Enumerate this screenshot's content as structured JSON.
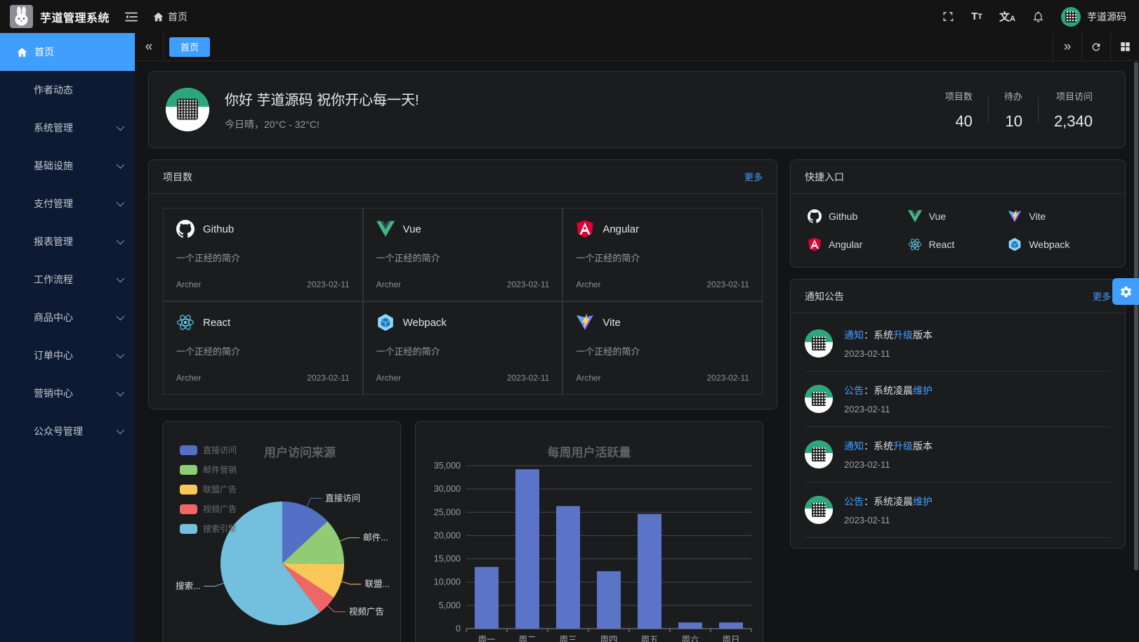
{
  "colors": {
    "accent": "#409eff",
    "sidebar_bg": "#0c1b33",
    "card_bg": "#1b1c1e",
    "qr_green": "#2aa87c"
  },
  "topbar": {
    "title": "芋道管理系统",
    "breadcrumb_home": "首页",
    "username": "芋道源码",
    "icons": [
      "fold-icon",
      "home-icon",
      "fullscreen-icon",
      "font-size-icon",
      "locale-icon",
      "bell-icon",
      "avatar"
    ]
  },
  "tabbar": {
    "active_tab": "首页",
    "icons": [
      "collapse-left-icon",
      "expand-right-icon",
      "refresh-icon",
      "layout-grid-icon"
    ]
  },
  "sidebar": {
    "items": [
      {
        "label": "首页",
        "active": true,
        "icon": "home-icon",
        "children": false
      },
      {
        "label": "作者动态",
        "children": false
      },
      {
        "label": "系统管理",
        "children": true
      },
      {
        "label": "基础设施",
        "children": true
      },
      {
        "label": "支付管理",
        "children": true
      },
      {
        "label": "报表管理",
        "children": true
      },
      {
        "label": "工作流程",
        "children": true
      },
      {
        "label": "商品中心",
        "children": true
      },
      {
        "label": "订单中心",
        "children": true
      },
      {
        "label": "营销中心",
        "children": true
      },
      {
        "label": "公众号管理",
        "children": true
      }
    ]
  },
  "hero": {
    "greeting": "你好 芋道源码 祝你开心每一天!",
    "weather": "今日晴，20°C - 32°C!",
    "stats": [
      {
        "label": "项目数",
        "value": "40"
      },
      {
        "label": "待办",
        "value": "10"
      },
      {
        "label": "项目访问",
        "value": "2,340"
      }
    ]
  },
  "projects": {
    "title": "项目数",
    "more": "更多",
    "items": [
      {
        "name": "Github",
        "icon": "github-icon",
        "desc": "一个正经的简介",
        "author": "Archer",
        "date": "2023-02-11"
      },
      {
        "name": "Vue",
        "icon": "vue-icon",
        "desc": "一个正经的简介",
        "author": "Archer",
        "date": "2023-02-11"
      },
      {
        "name": "Angular",
        "icon": "angular-icon",
        "desc": "一个正经的简介",
        "author": "Archer",
        "date": "2023-02-11"
      },
      {
        "name": "React",
        "icon": "react-icon",
        "desc": "一个正经的简介",
        "author": "Archer",
        "date": "2023-02-11"
      },
      {
        "name": "Webpack",
        "icon": "webpack-icon",
        "desc": "一个正经的简介",
        "author": "Archer",
        "date": "2023-02-11"
      },
      {
        "name": "Vite",
        "icon": "vite-icon",
        "desc": "一个正经的简介",
        "author": "Archer",
        "date": "2023-02-11"
      }
    ]
  },
  "shortcuts": {
    "title": "快捷入口",
    "items": [
      {
        "name": "Github",
        "icon": "github-icon"
      },
      {
        "name": "Vue",
        "icon": "vue-icon"
      },
      {
        "name": "Vite",
        "icon": "vite-icon"
      },
      {
        "name": "Angular",
        "icon": "angular-icon"
      },
      {
        "name": "React",
        "icon": "react-icon"
      },
      {
        "name": "Webpack",
        "icon": "webpack-icon"
      }
    ]
  },
  "notices": {
    "title": "通知公告",
    "more": "更多",
    "items": [
      {
        "segments": [
          {
            "t": "通知",
            "hl": true
          },
          {
            "t": "：系统",
            "hl": false
          },
          {
            "t": "升级",
            "hl": true
          },
          {
            "t": "版本",
            "hl": false
          }
        ],
        "date": "2023-02-11"
      },
      {
        "segments": [
          {
            "t": "公告",
            "hl": true
          },
          {
            "t": "：系统凌晨",
            "hl": false
          },
          {
            "t": "维护",
            "hl": true
          }
        ],
        "date": "2023-02-11"
      },
      {
        "segments": [
          {
            "t": "通知",
            "hl": true
          },
          {
            "t": "：系统",
            "hl": false
          },
          {
            "t": "升级",
            "hl": true
          },
          {
            "t": "版本",
            "hl": false
          }
        ],
        "date": "2023-02-11"
      },
      {
        "segments": [
          {
            "t": "公告",
            "hl": true
          },
          {
            "t": "：系统凌晨",
            "hl": false
          },
          {
            "t": "维护",
            "hl": true
          }
        ],
        "date": "2023-02-11"
      }
    ]
  },
  "chart_data": [
    {
      "type": "pie",
      "title": "用户访问来源",
      "legend_position": "top-left-vertical",
      "series": [
        {
          "name": "直接访问",
          "value": 335,
          "color": "#5470c6",
          "label_display": "直接访问"
        },
        {
          "name": "邮件营销",
          "value": 310,
          "color": "#91cc75",
          "label_display": "邮件..."
        },
        {
          "name": "联盟广告",
          "value": 234,
          "color": "#fac858",
          "label_display": "联盟..."
        },
        {
          "name": "视频广告",
          "value": 135,
          "color": "#ee6666",
          "label_display": "视频广告"
        },
        {
          "name": "搜索引擎",
          "value": 1548,
          "color": "#73c0de",
          "label_display": "搜索..."
        }
      ]
    },
    {
      "type": "bar",
      "title": "每周用户活跃量",
      "categories": [
        "周一",
        "周二",
        "周三",
        "周四",
        "周五",
        "周六",
        "周日"
      ],
      "values": [
        13253,
        34235,
        26321,
        12340,
        24643,
        1322,
        1324
      ],
      "ylim": [
        0,
        35000
      ],
      "ytick_step": 5000,
      "ytick_labels": [
        "0",
        "5,000",
        "10,000",
        "15,000",
        "20,000",
        "25,000",
        "30,000",
        "35,000"
      ],
      "bar_color": "#5b74c8",
      "grid": "on",
      "xlabel": "",
      "ylabel": ""
    }
  ]
}
